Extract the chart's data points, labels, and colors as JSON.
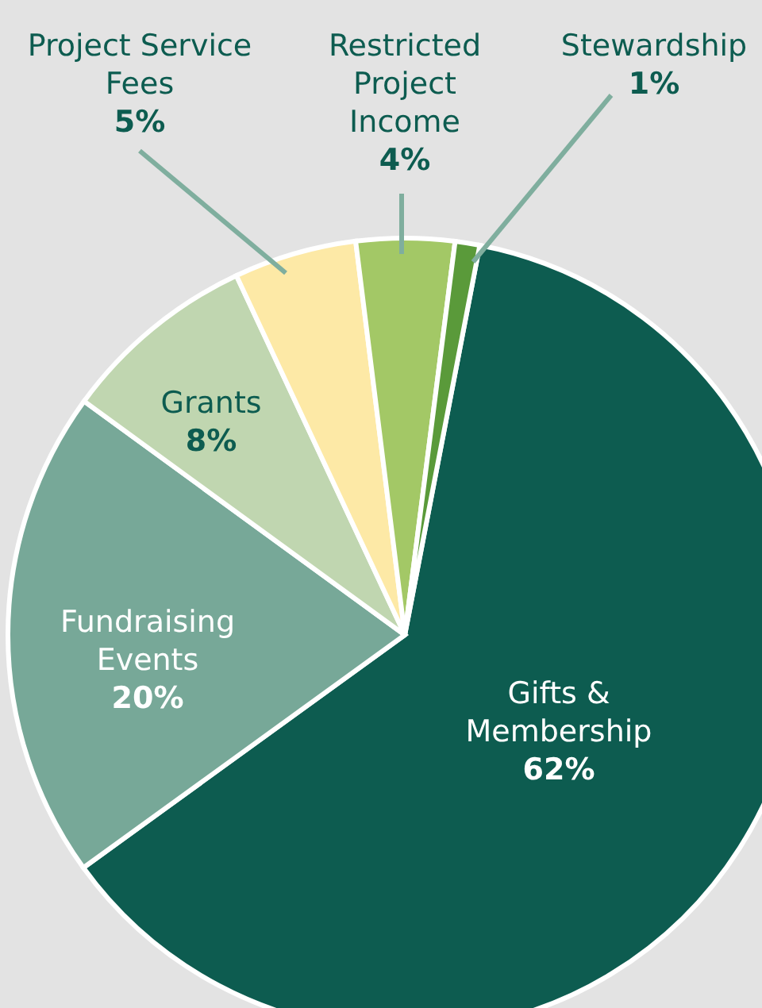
{
  "chart_data": {
    "type": "pie",
    "categories": [
      "Gifts & Membership",
      "Fundraising Events",
      "Grants",
      "Project Service Fees",
      "Restricted Project Income",
      "Stewardship"
    ],
    "values": [
      62,
      20,
      8,
      5,
      4,
      1
    ],
    "value_labels": [
      "62%",
      "20%",
      "8%",
      "5%",
      "4%",
      "1%"
    ],
    "colors": [
      "#0d5c50",
      "#77a898",
      "#c0d6b0",
      "#fde9a6",
      "#a3c866",
      "#5a9a3a"
    ]
  }
}
